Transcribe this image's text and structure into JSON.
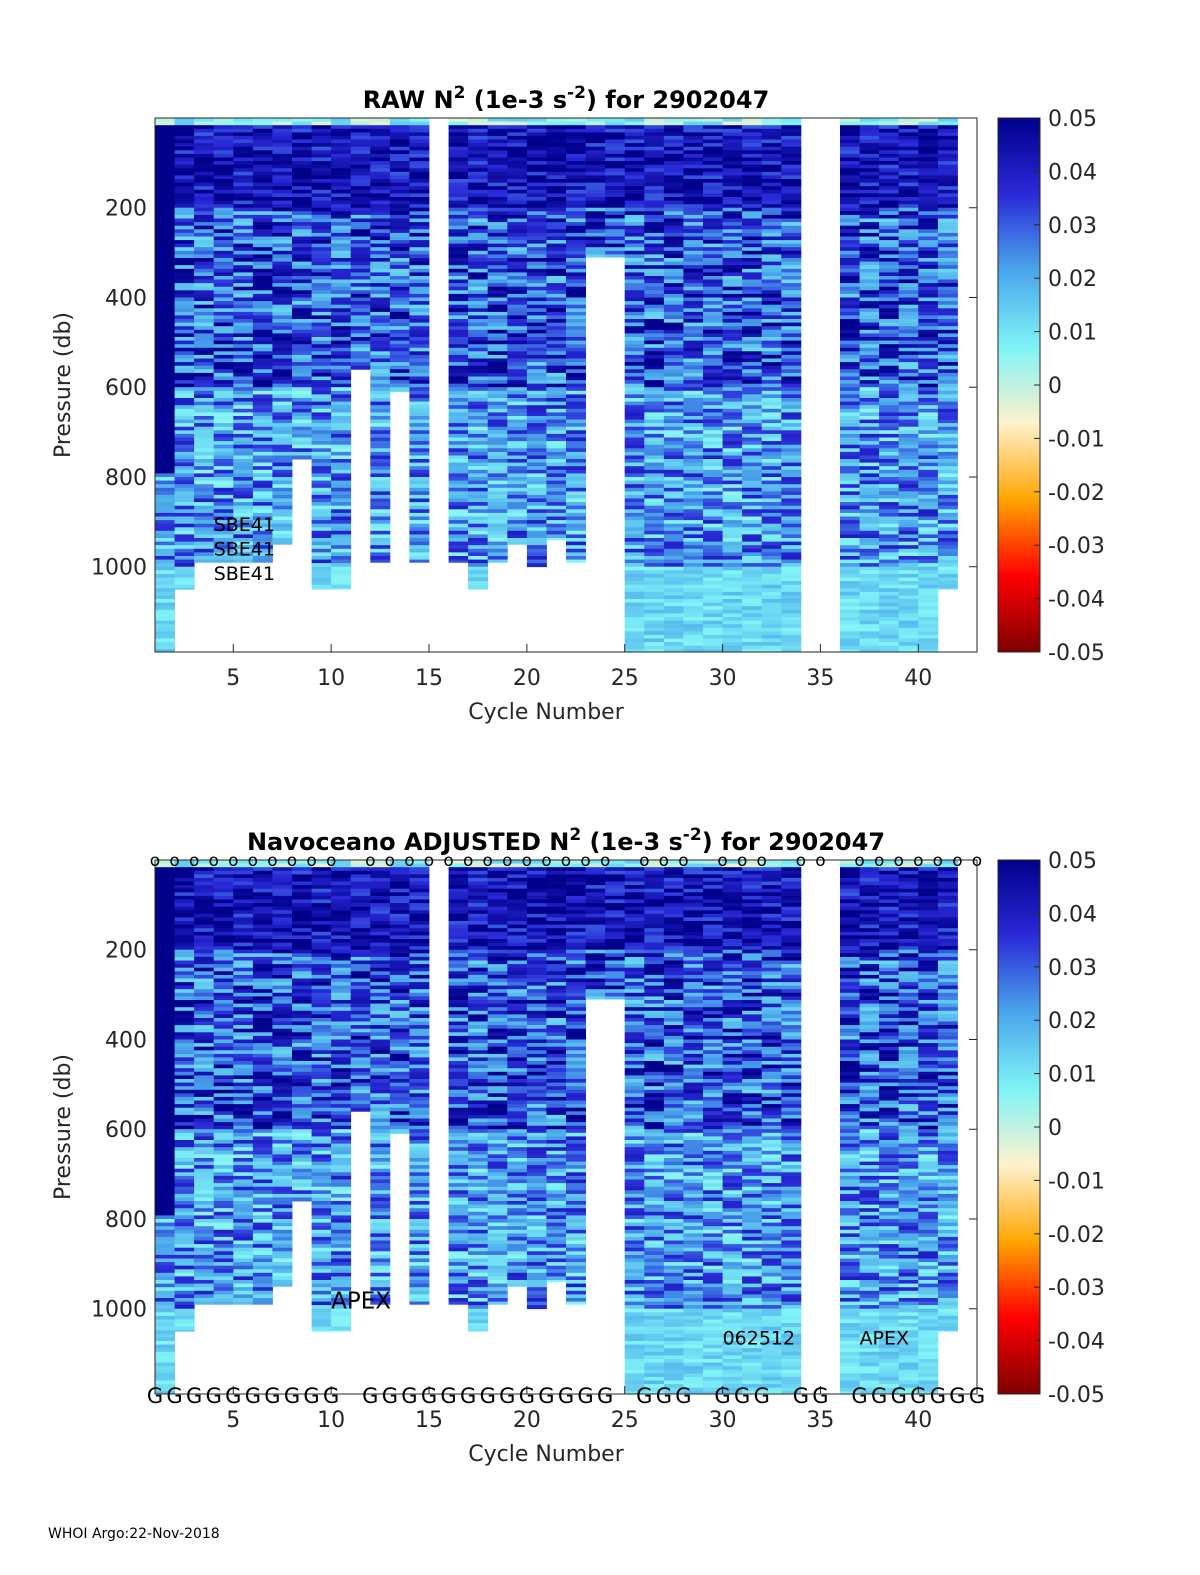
{
  "footer": "WHOI Argo:22-Nov-2018",
  "colormap": {
    "stops": [
      "#7f0000",
      "#ff0000",
      "#ffa500",
      "#fff2cc",
      "#7ff3f7",
      "#4aa6ea",
      "#2a2ad8",
      "#00008b"
    ],
    "tick_labels": [
      "0.05",
      "0.04",
      "0.03",
      "0.02",
      "0.01",
      "0",
      "-0.01",
      "-0.02",
      "-0.03",
      "-0.04",
      "-0.05"
    ],
    "range": [
      -0.05,
      0.05
    ]
  },
  "chart_data": [
    {
      "type": "heatmap",
      "title_prefix": "RAW N",
      "title_sup": "2",
      "title_mid": " (1e-3 s",
      "title_sup2": "-2",
      "title_suffix": ") for 2902047",
      "xlabel": "Cycle Number",
      "ylabel": "Pressure (db)",
      "xlim": [
        1,
        43
      ],
      "ylim": [
        1190,
        0
      ],
      "xticks": [
        "5",
        "10",
        "15",
        "20",
        "25",
        "30",
        "35",
        "40"
      ],
      "yticks": [
        "200",
        "400",
        "600",
        "800",
        "1000"
      ],
      "max_pressure": [
        1190,
        1050,
        990,
        990,
        990,
        990,
        950,
        760,
        1050,
        1050,
        560,
        990,
        610,
        990,
        0,
        990,
        1050,
        990,
        950,
        1000,
        940,
        990,
        310,
        310,
        1190,
        1190,
        1190,
        1190,
        1190,
        1190,
        1190,
        1190,
        1190,
        0,
        0,
        1190,
        1190,
        1190,
        1190,
        1190,
        1050,
        0
      ],
      "annotations": [
        "SBE41",
        "SBE41",
        "SBE41"
      ],
      "annotation_positions_cycle": [
        4,
        4,
        4
      ],
      "annotation_positions_pressure": [
        920,
        975,
        1030
      ]
    },
    {
      "type": "heatmap",
      "title_prefix": "Navoceano  ADJUSTED N",
      "title_sup": "2",
      "title_mid": " (1e-3 s",
      "title_sup2": "-2",
      "title_suffix": ") for 2902047",
      "xlabel": "Cycle Number",
      "ylabel": "Pressure (db)",
      "xlim": [
        1,
        43
      ],
      "ylim": [
        1190,
        0
      ],
      "xticks": [
        "5",
        "10",
        "15",
        "20",
        "25",
        "30",
        "35",
        "40"
      ],
      "yticks": [
        "200",
        "400",
        "600",
        "800",
        "1000"
      ],
      "max_pressure": [
        1190,
        1050,
        990,
        990,
        990,
        990,
        950,
        760,
        1050,
        1050,
        560,
        990,
        610,
        990,
        0,
        990,
        1050,
        990,
        950,
        1000,
        940,
        990,
        310,
        310,
        1190,
        1190,
        1190,
        1190,
        1190,
        1190,
        1190,
        1190,
        1190,
        0,
        0,
        1190,
        1190,
        1190,
        1190,
        1190,
        1050,
        0
      ],
      "top_marker": "o",
      "top_marker_cycles": [
        1,
        2,
        3,
        4,
        5,
        6,
        7,
        8,
        9,
        10,
        12,
        13,
        14,
        15,
        16,
        17,
        18,
        19,
        20,
        21,
        22,
        23,
        24,
        26,
        27,
        28,
        30,
        31,
        32,
        34,
        35,
        37,
        38,
        39,
        40,
        41,
        42,
        43
      ],
      "bottom_marker": "G",
      "bottom_marker_cycles": [
        1,
        2,
        3,
        4,
        5,
        6,
        7,
        8,
        9,
        10,
        12,
        13,
        14,
        15,
        16,
        17,
        18,
        19,
        20,
        21,
        22,
        23,
        24,
        26,
        27,
        28,
        30,
        31,
        32,
        34,
        35,
        37,
        38,
        39,
        40,
        41,
        42,
        43
      ],
      "annotations": [
        "APEX",
        "062512",
        "APEX"
      ],
      "annotation_positions_cycle": [
        10,
        30,
        37
      ],
      "annotation_positions_pressure": [
        1000,
        1080,
        1080
      ]
    }
  ]
}
